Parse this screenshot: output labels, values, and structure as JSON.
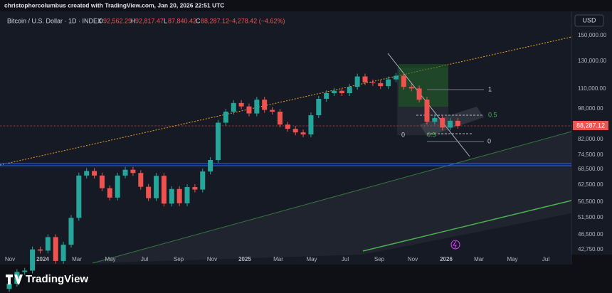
{
  "header": {
    "text": "christophercolumbus created with TradingView.com, Jan 20, 2026 22:51 UTC"
  },
  "legend": {
    "symbol": "Bitcoin / U.S. Dollar · 1D · INDEX",
    "open_label": "O",
    "open": "92,562.29",
    "high_label": "H",
    "high": "92,817.47",
    "low_label": "L",
    "low": "87,840.42",
    "close_label": "C",
    "close": "88,287.12",
    "change": "−4,278.42 (−4.62%)"
  },
  "currency": "USD",
  "price_axis": {
    "labels": [
      "150,000.00",
      "130,000.00",
      "110,000.00",
      "98,000.00",
      "82,000.00",
      "74,500.00",
      "68,500.00",
      "62,500.00",
      "56,500.00",
      "51,500.00",
      "46,500.00",
      "42,750.00"
    ],
    "current_price": "88,287.12"
  },
  "time_axis": {
    "labels": [
      "Nov",
      "2024",
      "Mar",
      "May",
      "Jul",
      "Sep",
      "Nov",
      "2025",
      "Mar",
      "May",
      "Jul",
      "Sep",
      "Nov",
      "2026",
      "Mar",
      "May",
      "Jul"
    ]
  },
  "fib_labels": {
    "top_1": "1",
    "right_05": "0.5",
    "right_0": "0",
    "left_0": "0",
    "left_05": "0.5"
  },
  "price_chart": {
    "closes": [
      35000,
      37500,
      37800,
      42800,
      42500,
      46000,
      40000,
      44000,
      51500,
      66000,
      67800,
      66000,
      61300,
      58000,
      66000,
      68300,
      67000,
      61800,
      57800,
      65900,
      56000,
      61000,
      56100,
      61700,
      60800,
      67600,
      72300,
      90000,
      96000,
      101000,
      99000,
      95000,
      103000,
      97000,
      96000,
      89000,
      86800,
      85000,
      84000,
      94000,
      103500,
      107000,
      108500,
      107000,
      111000,
      118000,
      114000,
      113500,
      111500,
      116000,
      118500,
      111000,
      110000,
      103000,
      90500,
      92500,
      87500,
      91000,
      88287.12
    ]
  },
  "footer": {
    "brand": "TradingView"
  }
}
